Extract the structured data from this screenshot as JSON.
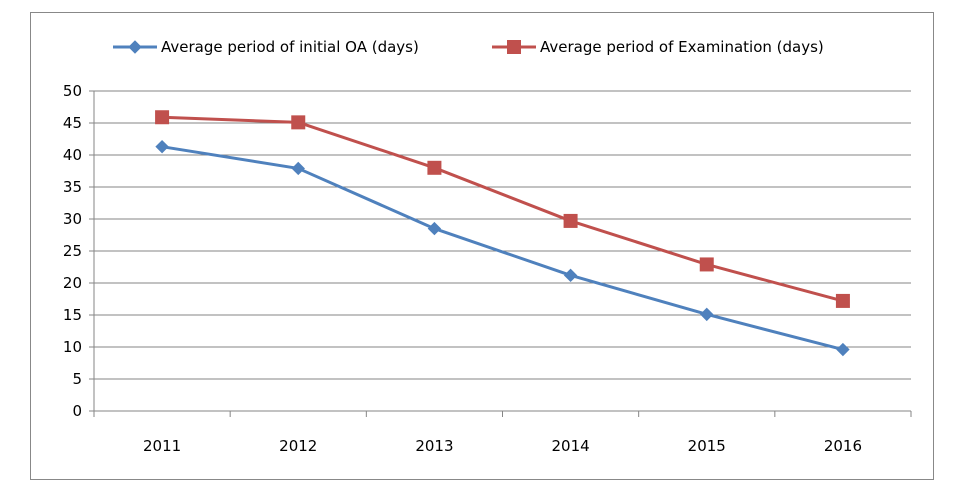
{
  "chart_data": {
    "type": "line",
    "title": "",
    "xlabel": "",
    "ylabel": "",
    "categories": [
      "2011",
      "2012",
      "2013",
      "2014",
      "2015",
      "2016"
    ],
    "ylim": [
      0,
      50
    ],
    "ytick_step": 5,
    "grid": true,
    "legend_position": "top",
    "series": [
      {
        "name": "Average period of initial OA (days)",
        "values": [
          41.3,
          37.9,
          28.5,
          21.2,
          15.1,
          9.6
        ],
        "color": "#4F81BD",
        "marker": "diamond"
      },
      {
        "name": "Average period of Examination (days)",
        "values": [
          45.9,
          45.1,
          38.0,
          29.7,
          22.9,
          17.2
        ],
        "color": "#C0504D",
        "marker": "square"
      }
    ]
  }
}
